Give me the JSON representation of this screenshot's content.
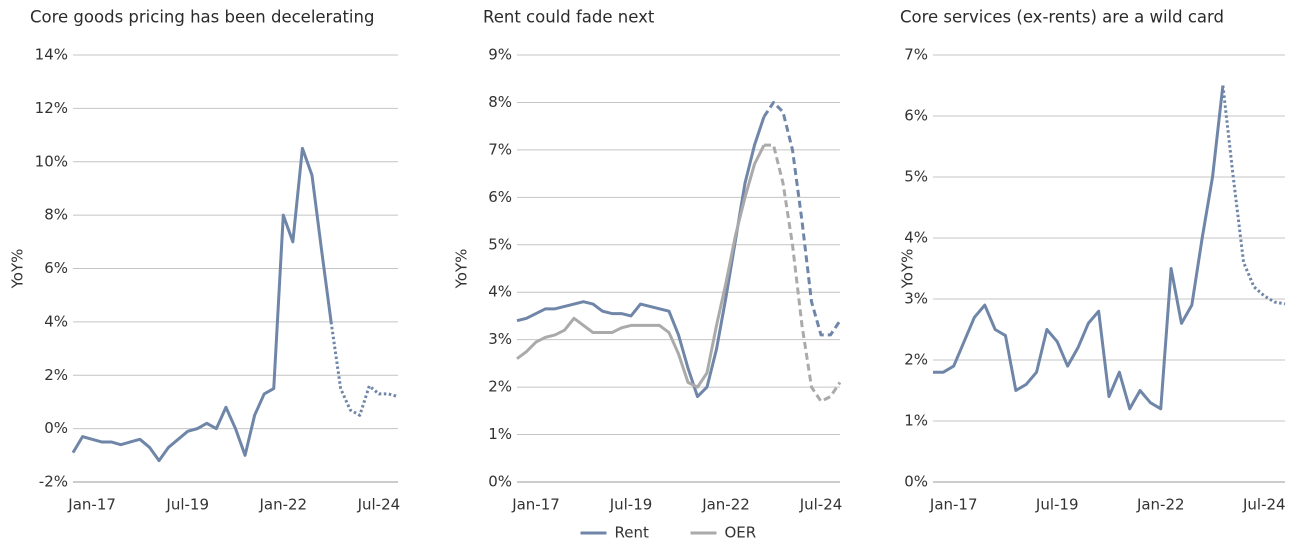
{
  "chart_data": [
    {
      "type": "line",
      "title": "Core goods pricing has been decelerating",
      "y_label": "YoY%",
      "categories": [
        null,
        null,
        "Jan-17",
        null,
        null,
        null,
        null,
        null,
        null,
        null,
        null,
        null,
        "Jul-19",
        null,
        null,
        null,
        null,
        null,
        null,
        null,
        null,
        null,
        "Jan-22",
        null,
        null,
        null,
        null,
        null,
        null,
        null,
        null,
        null,
        "Jul-24",
        null,
        null
      ],
      "series": [
        {
          "color": "#6f86a8",
          "style": "solid",
          "values": [
            -0.9,
            -0.3,
            -0.4,
            -0.5,
            -0.5,
            -0.6,
            -0.5,
            -0.4,
            -0.7,
            -1.2,
            -0.7,
            -0.4,
            -0.1,
            0.0,
            0.2,
            0.0,
            0.8,
            0.0,
            -1.0,
            0.5,
            1.3,
            1.5,
            8.0,
            7.0,
            10.5,
            9.5,
            6.7,
            4.0,
            null,
            null,
            null,
            null,
            null,
            null,
            null
          ]
        },
        {
          "color": "#6f86a8",
          "style": "dotted",
          "values": [
            null,
            null,
            null,
            null,
            null,
            null,
            null,
            null,
            null,
            null,
            null,
            null,
            null,
            null,
            null,
            null,
            null,
            null,
            null,
            null,
            null,
            null,
            null,
            null,
            null,
            null,
            null,
            4.0,
            1.5,
            0.7,
            0.5,
            1.6,
            1.3,
            1.3,
            1.2
          ]
        }
      ],
      "ylim": [
        -2,
        14
      ],
      "yticks": [
        {
          "value": -2,
          "label": "-2%"
        },
        {
          "value": 0,
          "label": "0%"
        },
        {
          "value": 2,
          "label": "2%"
        },
        {
          "value": 4,
          "label": "4%"
        },
        {
          "value": 6,
          "label": "6%"
        },
        {
          "value": 8,
          "label": "8%"
        },
        {
          "value": 10,
          "label": "10%"
        },
        {
          "value": 12,
          "label": "12%"
        },
        {
          "value": 14,
          "label": "14%"
        }
      ],
      "grid": true
    },
    {
      "type": "line",
      "title": "Rent could fade next",
      "y_label": "YoY%",
      "categories": [
        null,
        null,
        "Jan-17",
        null,
        null,
        null,
        null,
        null,
        null,
        null,
        null,
        null,
        "Jul-19",
        null,
        null,
        null,
        null,
        null,
        null,
        null,
        null,
        null,
        "Jan-22",
        null,
        null,
        null,
        null,
        null,
        null,
        null,
        null,
        null,
        "Jul-24",
        null,
        null
      ],
      "series": [
        {
          "name": "Rent",
          "color": "#6f86a8",
          "style": "solid",
          "values": [
            3.4,
            3.45,
            3.55,
            3.65,
            3.65,
            3.7,
            3.75,
            3.8,
            3.75,
            3.6,
            3.55,
            3.55,
            3.5,
            3.75,
            3.7,
            3.65,
            3.6,
            3.1,
            2.4,
            1.8,
            2.0,
            2.8,
            3.9,
            5.1,
            6.3,
            7.1,
            7.7,
            null,
            null,
            null,
            null,
            null,
            null,
            null,
            null
          ]
        },
        {
          "name": "OER",
          "color": "#aaaaaa",
          "style": "solid",
          "values": [
            2.6,
            2.75,
            2.95,
            3.05,
            3.1,
            3.2,
            3.45,
            3.3,
            3.15,
            3.15,
            3.15,
            3.25,
            3.3,
            3.3,
            3.3,
            3.3,
            3.15,
            2.7,
            2.1,
            2.0,
            2.3,
            3.3,
            4.2,
            5.2,
            6.0,
            6.7,
            7.1,
            null,
            null,
            null,
            null,
            null,
            null,
            null,
            null
          ]
        },
        {
          "color": "#6f86a8",
          "style": "dashed",
          "values": [
            null,
            null,
            null,
            null,
            null,
            null,
            null,
            null,
            null,
            null,
            null,
            null,
            null,
            null,
            null,
            null,
            null,
            null,
            null,
            null,
            null,
            null,
            null,
            null,
            null,
            null,
            7.7,
            8.0,
            7.8,
            7.0,
            5.5,
            3.8,
            3.1,
            3.1,
            3.4
          ]
        },
        {
          "color": "#aaaaaa",
          "style": "dashed",
          "values": [
            null,
            null,
            null,
            null,
            null,
            null,
            null,
            null,
            null,
            null,
            null,
            null,
            null,
            null,
            null,
            null,
            null,
            null,
            null,
            null,
            null,
            null,
            null,
            null,
            null,
            null,
            7.1,
            7.1,
            6.3,
            5.0,
            3.3,
            2.0,
            1.7,
            1.8,
            2.1
          ]
        }
      ],
      "ylim": [
        0,
        9
      ],
      "yticks": [
        {
          "value": 0,
          "label": "0%"
        },
        {
          "value": 1,
          "label": "1%"
        },
        {
          "value": 2,
          "label": "2%"
        },
        {
          "value": 3,
          "label": "3%"
        },
        {
          "value": 4,
          "label": "4%"
        },
        {
          "value": 5,
          "label": "5%"
        },
        {
          "value": 6,
          "label": "6%"
        },
        {
          "value": 7,
          "label": "7%"
        },
        {
          "value": 8,
          "label": "8%"
        },
        {
          "value": 9,
          "label": "9%"
        }
      ],
      "grid": true,
      "legend": "bottom"
    },
    {
      "type": "line",
      "title": "Core services (ex-rents) are a wild card",
      "y_label": "YoY%",
      "categories": [
        null,
        null,
        "Jan-17",
        null,
        null,
        null,
        null,
        null,
        null,
        null,
        null,
        null,
        "Jul-19",
        null,
        null,
        null,
        null,
        null,
        null,
        null,
        null,
        null,
        "Jan-22",
        null,
        null,
        null,
        null,
        null,
        null,
        null,
        null,
        null,
        "Jul-24",
        null,
        null
      ],
      "series": [
        {
          "color": "#6f86a8",
          "style": "solid",
          "values": [
            1.8,
            1.8,
            1.9,
            2.3,
            2.7,
            2.9,
            2.5,
            2.4,
            1.5,
            1.6,
            1.8,
            2.5,
            2.3,
            1.9,
            2.2,
            2.6,
            2.8,
            1.4,
            1.8,
            1.2,
            1.5,
            1.3,
            1.2,
            3.5,
            2.6,
            2.9,
            4.0,
            5.0,
            6.5,
            null,
            null,
            null,
            null,
            null,
            null
          ]
        },
        {
          "color": "#6f86a8",
          "style": "dotted",
          "values": [
            null,
            null,
            null,
            null,
            null,
            null,
            null,
            null,
            null,
            null,
            null,
            null,
            null,
            null,
            null,
            null,
            null,
            null,
            null,
            null,
            null,
            null,
            null,
            null,
            null,
            null,
            null,
            null,
            6.5,
            5.0,
            3.6,
            3.2,
            3.05,
            2.95,
            2.92
          ]
        }
      ],
      "ylim": [
        0,
        7
      ],
      "yticks": [
        {
          "value": 0,
          "label": "0%"
        },
        {
          "value": 1,
          "label": "1%"
        },
        {
          "value": 2,
          "label": "2%"
        },
        {
          "value": 3,
          "label": "3%"
        },
        {
          "value": 4,
          "label": "4%"
        },
        {
          "value": 5,
          "label": "5%"
        },
        {
          "value": 6,
          "label": "6%"
        },
        {
          "value": 7,
          "label": "7%"
        }
      ],
      "grid": true
    }
  ]
}
